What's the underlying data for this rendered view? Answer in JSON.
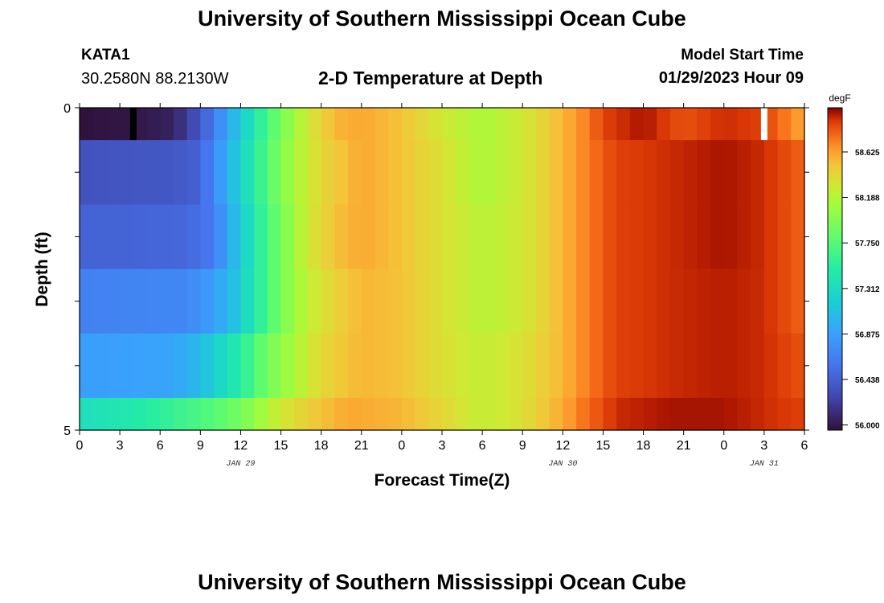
{
  "header": {
    "title": "University of Southern Mississippi Ocean Cube",
    "station": "KATA1",
    "coords": "30.2580N  88.2130W",
    "subtitle": "2-D Temperature at Depth",
    "model_start_label": "Model Start Time",
    "model_start_value": "01/29/2023 Hour 09"
  },
  "footer": {
    "title": "University of Southern Mississippi Ocean Cube"
  },
  "chart_data": {
    "type": "heatmap",
    "xlabel": "Forecast Time(Z)",
    "ylabel": "Depth (ft)",
    "x_tick_labels": [
      "0",
      "3",
      "6",
      "9",
      "12",
      "15",
      "18",
      "21",
      "0",
      "3",
      "6",
      "9",
      "12",
      "15",
      "18",
      "21",
      "0",
      "3",
      "6"
    ],
    "x_hours": [
      0,
      54
    ],
    "date_labels": [
      {
        "label": "JAN 29",
        "hour": 12
      },
      {
        "label": "JAN 30",
        "hour": 36
      },
      {
        "label": "JAN 31",
        "hour": 51
      }
    ],
    "y_tick_labels": [
      {
        "label": "0",
        "depth": 0
      },
      {
        "label": "5",
        "depth": 5
      }
    ],
    "ylim": [
      0,
      5
    ],
    "colorbar": {
      "unit": "degF",
      "labels": [
        "58.625",
        "58.188",
        "57.750",
        "57.312",
        "56.875",
        "56.438",
        "56.000"
      ],
      "min": 55.95,
      "max": 59.05
    },
    "layers": [
      {
        "depth_top": 0,
        "depth_bottom": 0.5,
        "values": [
          [
            0,
            55.95
          ],
          [
            4,
            55.98
          ],
          [
            7,
            56.05
          ],
          [
            8.5,
            56.3
          ],
          [
            10,
            56.6
          ],
          [
            11,
            56.9
          ],
          [
            12.5,
            57.3
          ],
          [
            14,
            57.7
          ],
          [
            15.5,
            58.0
          ],
          [
            17,
            58.3
          ],
          [
            19,
            58.55
          ],
          [
            21,
            58.6
          ],
          [
            24,
            58.5
          ],
          [
            27,
            58.3
          ],
          [
            30,
            58.15
          ],
          [
            33,
            58.3
          ],
          [
            36,
            58.55
          ],
          [
            38,
            58.75
          ],
          [
            39,
            58.9
          ],
          [
            42,
            59.0
          ],
          [
            45,
            58.85
          ],
          [
            48,
            58.95
          ],
          [
            51,
            58.9
          ],
          [
            52.5,
            58.75
          ],
          [
            54,
            58.6
          ]
        ]
      },
      {
        "depth_top": 0.5,
        "depth_bottom": 1.5,
        "values": [
          [
            0,
            56.35
          ],
          [
            7,
            56.38
          ],
          [
            9,
            56.45
          ],
          [
            10,
            56.7
          ],
          [
            11.5,
            57.1
          ],
          [
            13,
            57.5
          ],
          [
            14.5,
            57.85
          ],
          [
            16,
            58.15
          ],
          [
            18,
            58.4
          ],
          [
            21,
            58.6
          ],
          [
            24,
            58.5
          ],
          [
            27,
            58.35
          ],
          [
            30,
            58.15
          ],
          [
            33,
            58.3
          ],
          [
            36,
            58.55
          ],
          [
            38,
            58.75
          ],
          [
            40,
            58.9
          ],
          [
            44,
            58.95
          ],
          [
            48,
            59.0
          ],
          [
            51,
            58.95
          ],
          [
            54,
            58.8
          ]
        ]
      },
      {
        "depth_top": 1.5,
        "depth_bottom": 2.5,
        "values": [
          [
            0,
            56.45
          ],
          [
            8,
            56.48
          ],
          [
            10,
            56.6
          ],
          [
            11,
            56.9
          ],
          [
            12.5,
            57.3
          ],
          [
            14,
            57.7
          ],
          [
            15.5,
            58.0
          ],
          [
            17,
            58.3
          ],
          [
            19,
            58.5
          ],
          [
            21,
            58.6
          ],
          [
            24,
            58.5
          ],
          [
            27,
            58.35
          ],
          [
            30,
            58.2
          ],
          [
            33,
            58.3
          ],
          [
            36,
            58.55
          ],
          [
            38,
            58.75
          ],
          [
            40,
            58.9
          ],
          [
            44,
            58.95
          ],
          [
            48,
            59.0
          ],
          [
            51,
            58.95
          ],
          [
            54,
            58.8
          ]
        ]
      },
      {
        "depth_top": 2.5,
        "depth_bottom": 3.5,
        "values": [
          [
            0,
            56.65
          ],
          [
            8,
            56.7
          ],
          [
            10,
            56.85
          ],
          [
            11.5,
            57.1
          ],
          [
            13,
            57.45
          ],
          [
            14.5,
            57.8
          ],
          [
            16,
            58.1
          ],
          [
            18,
            58.35
          ],
          [
            21,
            58.55
          ],
          [
            24,
            58.5
          ],
          [
            27,
            58.35
          ],
          [
            30,
            58.2
          ],
          [
            33,
            58.3
          ],
          [
            36,
            58.55
          ],
          [
            38,
            58.75
          ],
          [
            40,
            58.9
          ],
          [
            44,
            58.95
          ],
          [
            48,
            58.98
          ],
          [
            51,
            58.95
          ],
          [
            54,
            58.8
          ]
        ]
      },
      {
        "depth_top": 3.5,
        "depth_bottom": 4.5,
        "values": [
          [
            0,
            56.85
          ],
          [
            7,
            56.9
          ],
          [
            9,
            57.05
          ],
          [
            11,
            57.35
          ],
          [
            12.5,
            57.6
          ],
          [
            14,
            57.9
          ],
          [
            16,
            58.15
          ],
          [
            18,
            58.4
          ],
          [
            21,
            58.55
          ],
          [
            24,
            58.5
          ],
          [
            27,
            58.35
          ],
          [
            30,
            58.25
          ],
          [
            33,
            58.35
          ],
          [
            36,
            58.55
          ],
          [
            38,
            58.75
          ],
          [
            40,
            58.9
          ],
          [
            44,
            58.95
          ],
          [
            48,
            58.98
          ],
          [
            51,
            58.95
          ],
          [
            54,
            58.85
          ]
        ]
      },
      {
        "depth_top": 4.5,
        "depth_bottom": 5,
        "values": [
          [
            0,
            57.35
          ],
          [
            2,
            57.4
          ],
          [
            5,
            57.5
          ],
          [
            8,
            57.65
          ],
          [
            10,
            57.75
          ],
          [
            12,
            57.9
          ],
          [
            13.5,
            58.1
          ],
          [
            15,
            58.3
          ],
          [
            17,
            58.45
          ],
          [
            20,
            58.6
          ],
          [
            24,
            58.55
          ],
          [
            27,
            58.4
          ],
          [
            30,
            58.25
          ],
          [
            33,
            58.35
          ],
          [
            36,
            58.6
          ],
          [
            38,
            58.8
          ],
          [
            40,
            58.95
          ],
          [
            44,
            59.0
          ],
          [
            48,
            59.0
          ],
          [
            51,
            58.95
          ],
          [
            54,
            58.9
          ]
        ]
      }
    ],
    "highlights": [
      {
        "hour": 4,
        "depth_top": 0,
        "depth_bottom": 0.5,
        "color": "#000000"
      },
      {
        "hour": 51,
        "depth_top": 0,
        "depth_bottom": 0.5,
        "color": "#ffffff"
      }
    ]
  }
}
